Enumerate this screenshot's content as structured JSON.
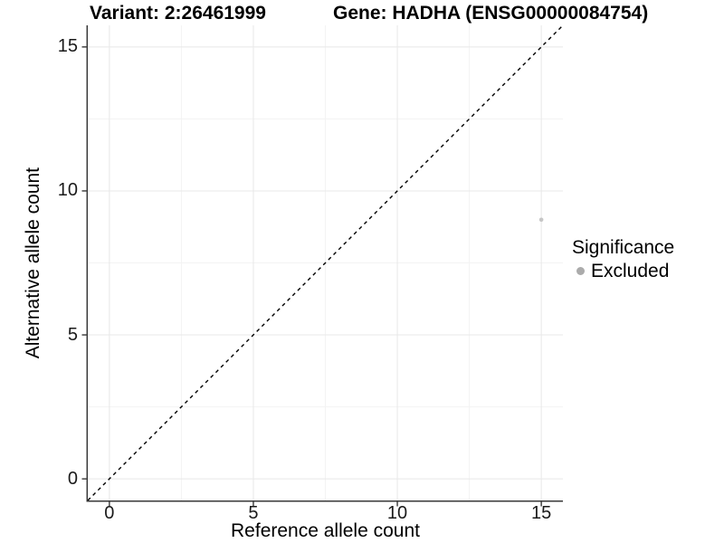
{
  "colors": {
    "background": "#ffffff",
    "axis_line": "#383838",
    "tick_mark": "#383838",
    "tick_label": "#1a1a1a",
    "grid_major": "#e8e8e8",
    "grid_minor": "#f3f3f3",
    "identity_line": "#000000",
    "point": "#c6c6c6",
    "legend_key": "#ababab"
  },
  "chart_data": {
    "type": "scatter",
    "title_left": "Variant: 2:26461999",
    "title_right": "Gene: HADHA (ENSG00000084754)",
    "xlabel": "Reference allele count",
    "ylabel": "Alternative allele count",
    "xlim": [
      -0.75,
      15.75
    ],
    "ylim": [
      -0.75,
      15.75
    ],
    "x_ticks": [
      0,
      5,
      10,
      15
    ],
    "y_ticks": [
      0,
      5,
      10,
      15
    ],
    "x_minor_ticks": [
      2.5,
      7.5,
      12.5
    ],
    "y_minor_ticks": [
      2.5,
      7.5,
      12.5
    ],
    "grid": "major and minor gridlines, white panel, equal 1:1 axis scale",
    "identity_line": {
      "style": "dashed",
      "slope": 1,
      "intercept": 0
    },
    "series": [
      {
        "name": "Excluded",
        "color": "#c6c6c6",
        "marker": "circle",
        "points": [
          {
            "x": 15,
            "y": 9
          }
        ]
      }
    ],
    "legend": {
      "title": "Significance",
      "position": "right",
      "entries": [
        {
          "label": "Excluded",
          "color": "#ababab",
          "marker": "circle"
        }
      ]
    }
  }
}
